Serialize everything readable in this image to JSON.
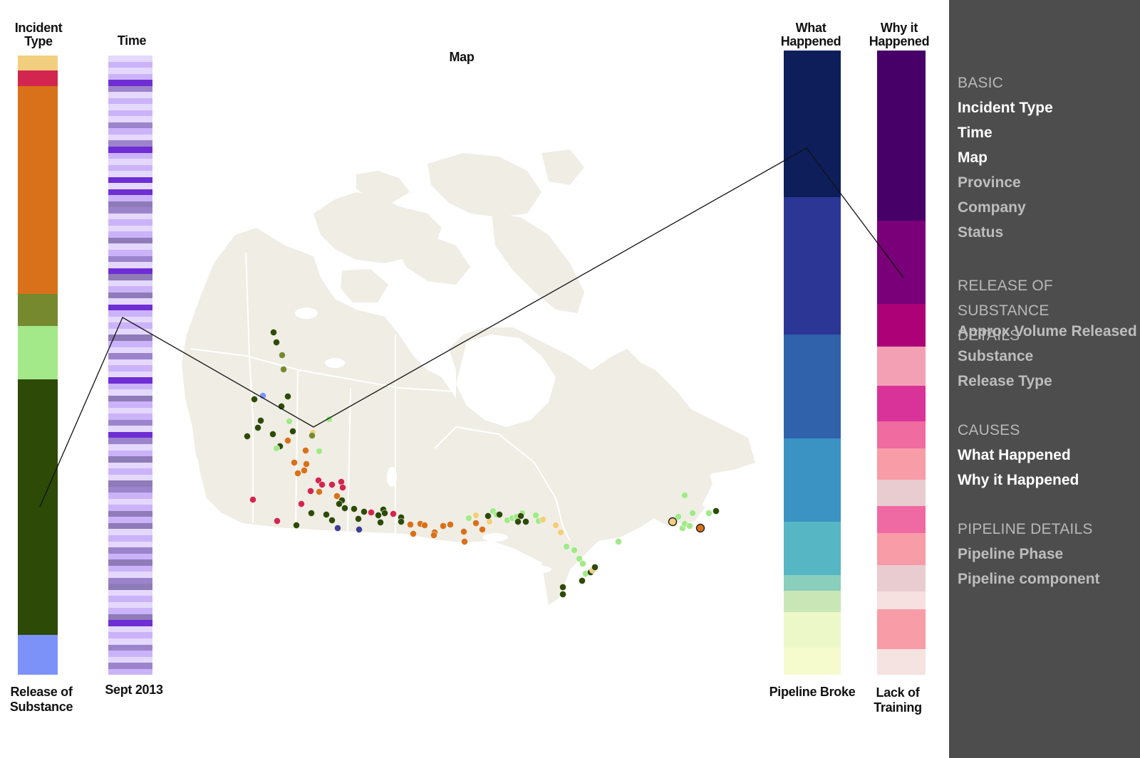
{
  "columns": {
    "incident_type": {
      "title_line1": "Incident",
      "title_line2": "Type",
      "bottom_line1": "Release of",
      "bottom_line2": "Substance",
      "segments": [
        {
          "color": "#f2cf7e",
          "share": 2.4
        },
        {
          "color": "#d3264f",
          "share": 2.6
        },
        {
          "color": "#d8711a",
          "share": 33.5
        },
        {
          "color": "#76892e",
          "share": 5.2
        },
        {
          "color": "#a3e98a",
          "share": 8.6
        },
        {
          "color": "#2d4a06",
          "share": 41.3
        },
        {
          "color": "#7c92f8",
          "share": 6.4
        }
      ]
    },
    "time": {
      "title": "Time",
      "bottom": "Sept 2013",
      "palette": [
        "#e4d8fc",
        "#cbb3f9",
        "#9c84cc",
        "#8f7bb8",
        "#6f2ed4"
      ],
      "stripes": [
        0,
        1,
        0,
        1,
        4,
        2,
        0,
        1,
        0,
        1,
        0,
        2,
        1,
        0,
        2,
        4,
        1,
        0,
        1,
        0,
        4,
        0,
        4,
        1,
        3,
        2,
        0,
        1,
        0,
        1,
        3,
        0,
        1,
        2,
        0,
        4,
        3,
        0,
        1,
        3,
        0,
        4,
        1,
        0,
        1,
        0,
        3,
        1,
        0,
        2,
        0,
        1,
        0,
        4,
        1,
        0,
        3,
        1,
        0,
        1,
        2,
        0,
        4,
        2,
        0,
        1,
        3,
        0,
        1,
        0,
        3,
        2,
        1,
        0,
        1,
        3,
        1,
        3,
        0,
        1,
        0,
        2,
        1,
        3,
        1,
        0,
        2,
        3,
        0,
        1,
        0,
        1,
        3,
        4,
        0,
        1,
        0,
        2,
        1,
        0,
        2,
        1
      ]
    },
    "map": {
      "title": "Map"
    },
    "what_happened": {
      "title_line1": "What",
      "title_line2": "Happened",
      "bottom": "Pipeline Broke",
      "segments": [
        {
          "color": "#0e1e5b",
          "share": 23.5
        },
        {
          "color": "#2b3695",
          "share": 22.0
        },
        {
          "color": "#2f62ab",
          "share": 16.6
        },
        {
          "color": "#3b93c4",
          "share": 13.4
        },
        {
          "color": "#56b6c4",
          "share": 8.5
        },
        {
          "color": "#8acfbb",
          "share": 2.6
        },
        {
          "color": "#c9e7b6",
          "share": 3.4
        },
        {
          "color": "#edf8c8",
          "share": 5.7
        },
        {
          "color": "#f5fbcc",
          "share": 4.3
        }
      ]
    },
    "why_happened": {
      "title_line1": "Why it",
      "title_line2": "Happened",
      "bottom_line1": "Lack of",
      "bottom_line2": "Training",
      "segments": [
        {
          "color": "#470067",
          "share": 27.2
        },
        {
          "color": "#790078",
          "share": 13.4
        },
        {
          "color": "#ad0178",
          "share": 6.8
        },
        {
          "color": "#f3a0b5",
          "share": 6.3
        },
        {
          "color": "#d93299",
          "share": 5.7
        },
        {
          "color": "#ef6ba0",
          "share": 4.4
        },
        {
          "color": "#f89ca8",
          "share": 5.0
        },
        {
          "color": "#e9cccf",
          "share": 4.2
        },
        {
          "color": "#ef69a2",
          "share": 4.3
        },
        {
          "color": "#f89ca8",
          "share": 5.2
        },
        {
          "color": "#e9cccf",
          "share": 4.2
        },
        {
          "color": "#f6e1e0",
          "share": 2.8
        },
        {
          "color": "#f89ca8",
          "share": 6.4
        },
        {
          "color": "#f5e3e1",
          "share": 4.1
        }
      ]
    }
  },
  "sidebar": {
    "sections": [
      {
        "heading": "BASIC",
        "items": [
          {
            "label": "Incident Type",
            "active": true
          },
          {
            "label": "Time",
            "active": true
          },
          {
            "label": "Map",
            "active": true
          },
          {
            "label": "Province",
            "active": false
          },
          {
            "label": "Company",
            "active": false
          },
          {
            "label": "Status",
            "active": false
          }
        ]
      },
      {
        "heading_line1": "RELEASE OF SUBSTANCE",
        "heading_line2": "DETAILS",
        "items": [
          {
            "label": "Approx Volume Released",
            "active": false
          },
          {
            "label": "Substance",
            "active": false
          },
          {
            "label": "Release Type",
            "active": false
          }
        ]
      },
      {
        "heading": "CAUSES",
        "items": [
          {
            "label": "What Happened",
            "active": true
          },
          {
            "label": "Why it Happened",
            "active": true
          }
        ]
      },
      {
        "heading": "PIPELINE DETAILS",
        "items": [
          {
            "label": "Pipeline Phase",
            "active": false
          },
          {
            "label": "Pipeline component",
            "active": false
          }
        ]
      }
    ]
  },
  "map_points": {
    "colors": {
      "dark": "#2d4a06",
      "olive": "#76892e",
      "light": "#a3e98a",
      "orange": "#d8711a",
      "red": "#d3264f",
      "yellow": "#f2cf7e",
      "blue": "#7c92f8",
      "navy": "#3f3f8f"
    }
  }
}
